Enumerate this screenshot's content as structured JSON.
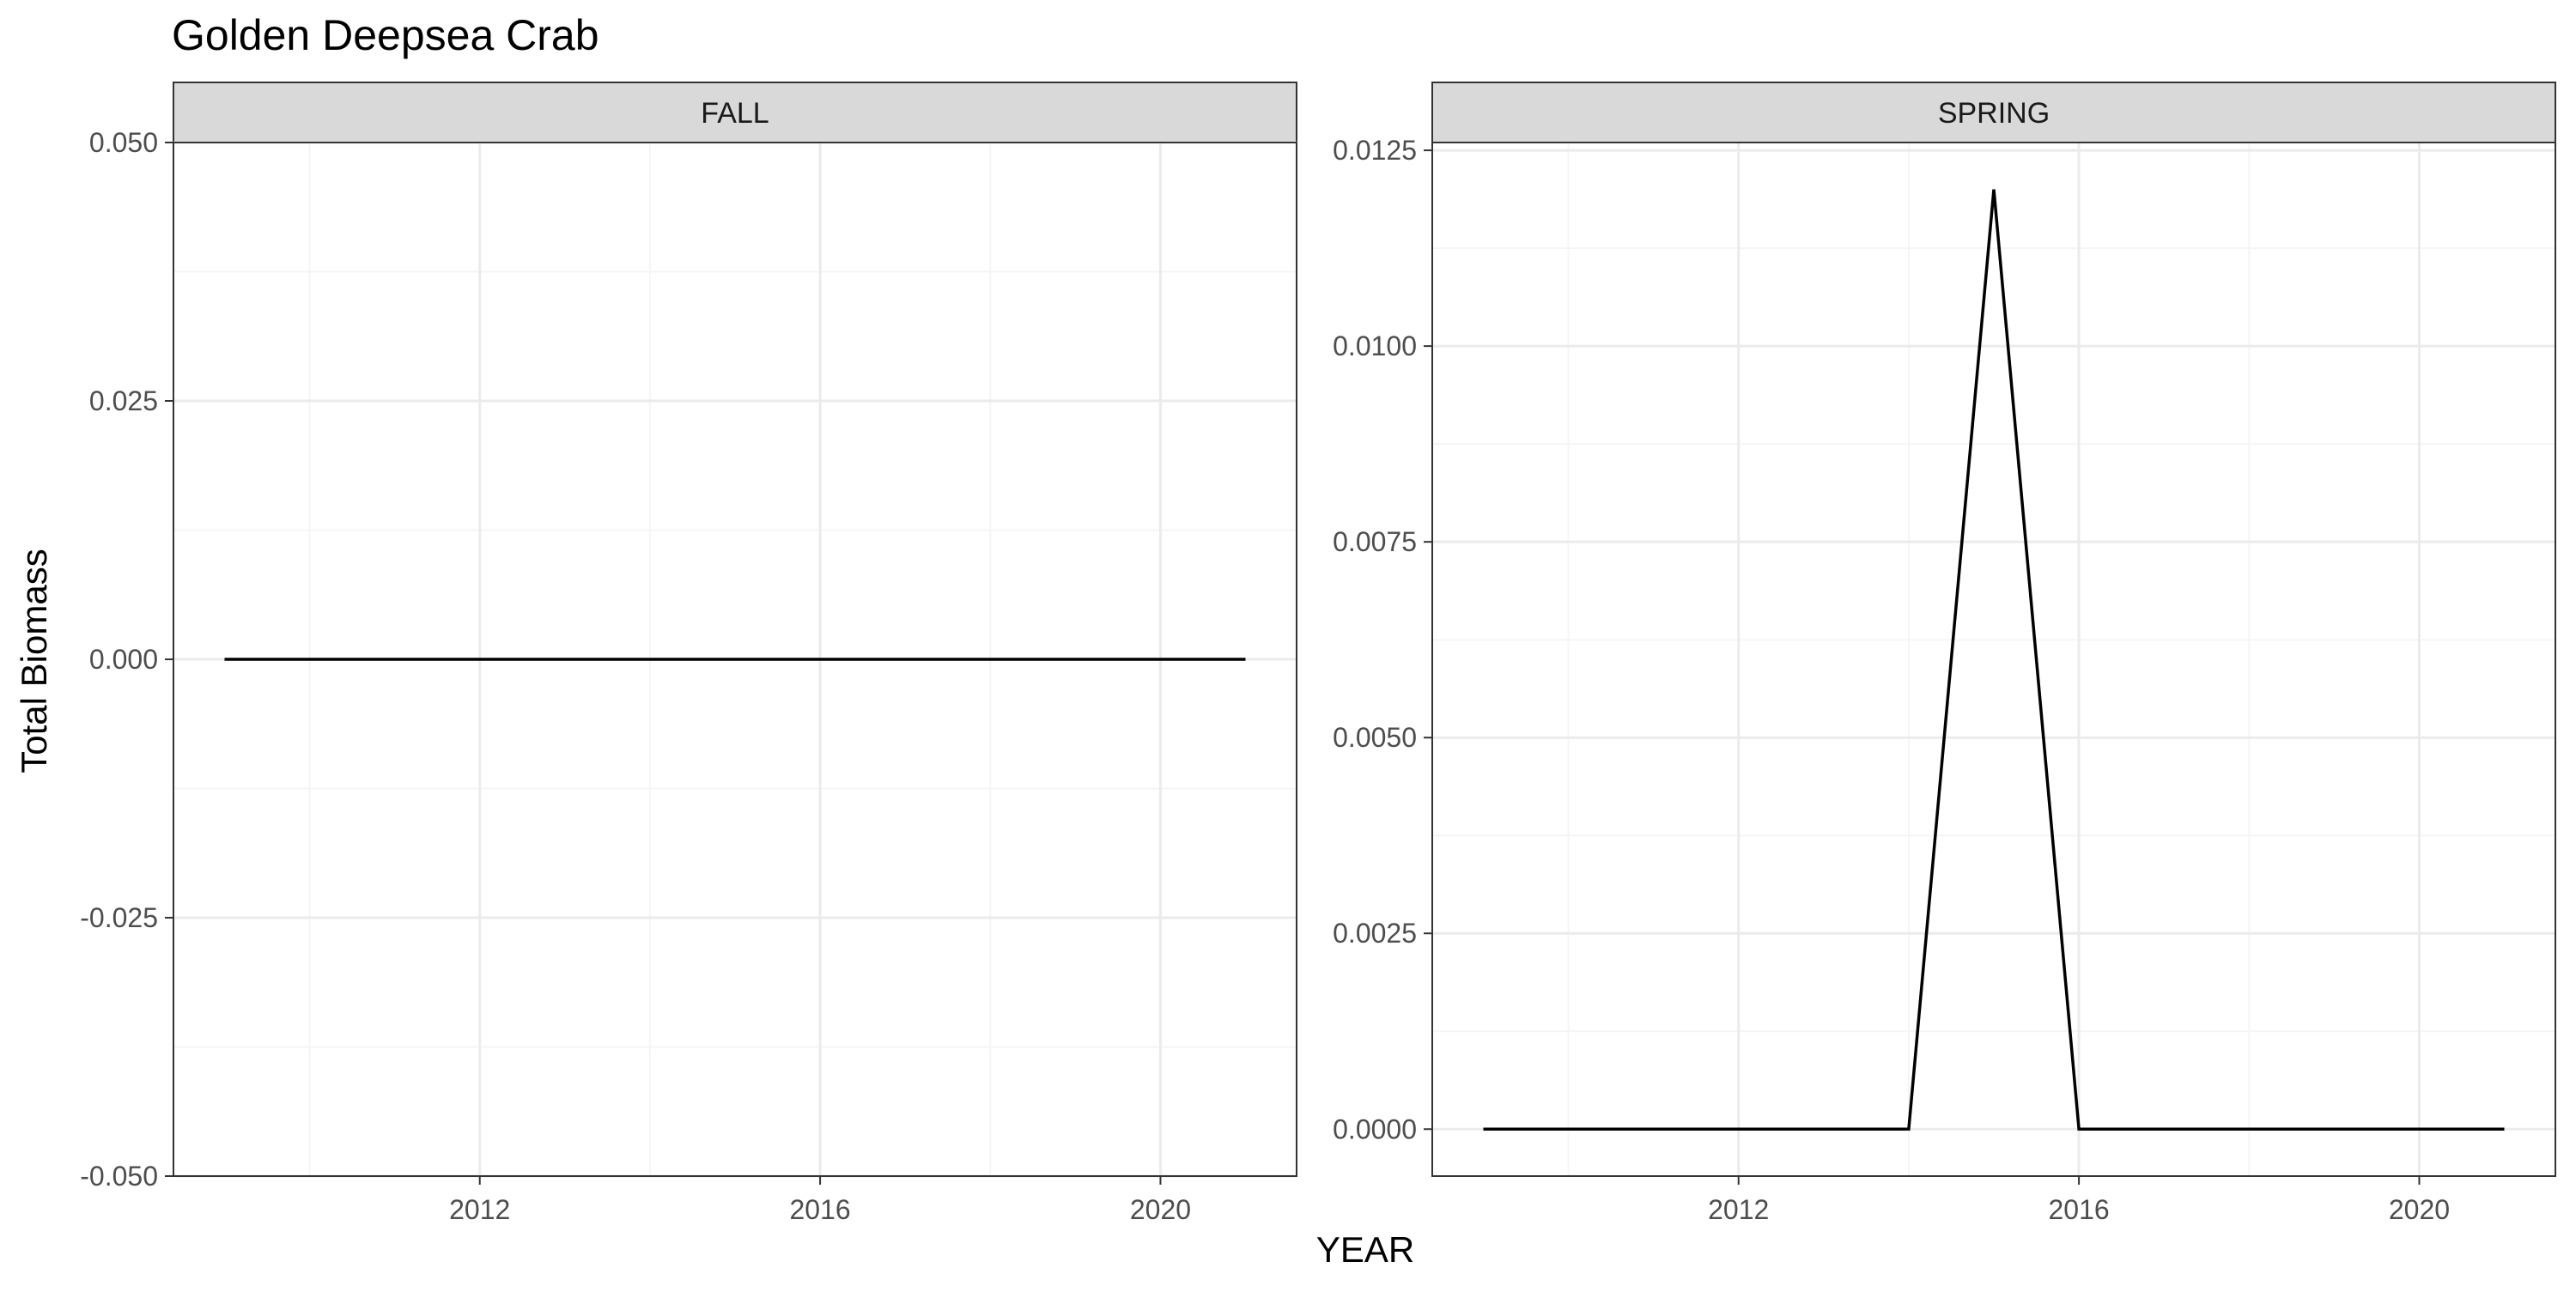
{
  "title": "Golden Deepsea Crab",
  "xlabel": "YEAR",
  "ylabel": "Total Biomass",
  "colors": {
    "line": "#000000",
    "strip": "#d9d9d9",
    "grid_major": "#ebebeb",
    "grid_minor": "#f5f5f5",
    "panel_border": "#333333",
    "tick_text": "#4d4d4d"
  },
  "chart_data": [
    {
      "type": "line",
      "panel": "FALL",
      "x": [
        2009,
        2010,
        2011,
        2012,
        2013,
        2014,
        2015,
        2016,
        2017,
        2018,
        2019,
        2020,
        2021
      ],
      "y": [
        0,
        0,
        0,
        0,
        0,
        0,
        0,
        0,
        0,
        0,
        0,
        0,
        0
      ],
      "xlim": [
        2008.4,
        2021.6
      ],
      "ylim": [
        -0.05,
        0.05
      ],
      "xticks": [
        "2012",
        "2016",
        "2020"
      ],
      "yticks": [
        "-0.050",
        "-0.025",
        "0.000",
        "0.025",
        "0.050"
      ],
      "grid": true
    },
    {
      "type": "line",
      "panel": "SPRING",
      "x": [
        2009,
        2010,
        2011,
        2012,
        2013,
        2014,
        2015,
        2016,
        2017,
        2018,
        2019,
        2020,
        2021
      ],
      "y": [
        0,
        0,
        0,
        0,
        0,
        0,
        0.012,
        0,
        0,
        0,
        0,
        0,
        0
      ],
      "xlim": [
        2008.4,
        2021.6
      ],
      "ylim": [
        -0.0006,
        0.0126
      ],
      "xticks": [
        "2012",
        "2016",
        "2020"
      ],
      "yticks": [
        "0.0000",
        "0.0025",
        "0.0050",
        "0.0075",
        "0.0100",
        "0.0125"
      ],
      "grid": true
    }
  ]
}
